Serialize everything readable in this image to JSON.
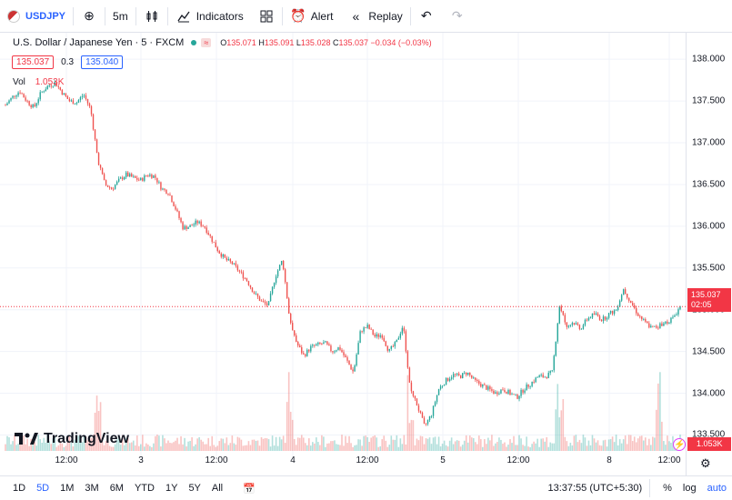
{
  "toolbar": {
    "symbol": "USDJPY",
    "interval": "5m",
    "indicators_label": "Indicators",
    "alert_label": "Alert",
    "replay_label": "Replay"
  },
  "legend": {
    "title": "U.S. Dollar / Japanese Yen · 5 · FXCM",
    "open_k": "O",
    "open": "135.071",
    "high_k": "H",
    "high": "135.091",
    "low_k": "L",
    "low": "135.028",
    "close_k": "C",
    "close": "135.037",
    "change": "−0.034 (−0.03%)",
    "sell": "135.037",
    "spread": "0.3",
    "buy": "135.040",
    "vol_label": "Vol",
    "vol_value": "1.053K"
  },
  "price_axis": [
    "138.000",
    "137.500",
    "137.000",
    "136.500",
    "136.000",
    "135.500",
    "135.000",
    "134.500",
    "134.000",
    "133.500"
  ],
  "time_axis": [
    "12:00",
    "3",
    "12:00",
    "4",
    "12:00",
    "5",
    "12:00",
    "8",
    "12:00"
  ],
  "price_tag": {
    "price": "135.037",
    "countdown": "02:05",
    "vol": "1.053K"
  },
  "watermark": "TradingView",
  "bottombar": {
    "ranges": [
      "1D",
      "5D",
      "1M",
      "3M",
      "6M",
      "YTD",
      "1Y",
      "5Y",
      "All"
    ],
    "active": "5D",
    "clock": "13:37:55 (UTC+5:30)",
    "percent": "%",
    "log": "log",
    "auto": "auto"
  },
  "colors": {
    "up": "#26a69a",
    "down": "#ef5350",
    "accent": "#2962ff"
  },
  "chart_data": {
    "type": "line",
    "ylim": [
      133.2,
      138.1
    ],
    "price_key_points": [
      137.45,
      137.55,
      137.62,
      137.5,
      137.42,
      137.6,
      137.68,
      137.72,
      137.6,
      137.5,
      137.48,
      137.58,
      137.4,
      136.8,
      136.5,
      136.45,
      136.55,
      136.62,
      136.58,
      136.55,
      136.62,
      136.6,
      136.45,
      136.4,
      136.2,
      135.98,
      136.0,
      136.05,
      136.0,
      135.85,
      135.7,
      135.6,
      135.55,
      135.45,
      135.35,
      135.2,
      135.1,
      135.05,
      135.4,
      135.6,
      134.9,
      134.6,
      134.45,
      134.55,
      134.58,
      134.6,
      134.5,
      134.55,
      134.4,
      134.25,
      134.75,
      134.8,
      134.68,
      134.7,
      134.5,
      134.6,
      134.82,
      134.05,
      133.85,
      133.6,
      133.75,
      134.05,
      134.15,
      134.22,
      134.2,
      134.25,
      134.15,
      134.1,
      134.05,
      134.0,
      134.05,
      134.0,
      133.95,
      134.05,
      134.12,
      134.2,
      134.2,
      134.25,
      135.05,
      134.8,
      134.85,
      134.78,
      134.9,
      134.95,
      134.88,
      134.95,
      135.0,
      135.25,
      135.1,
      134.95,
      134.85,
      134.78,
      134.8,
      134.85,
      134.9,
      135.04
    ]
  }
}
